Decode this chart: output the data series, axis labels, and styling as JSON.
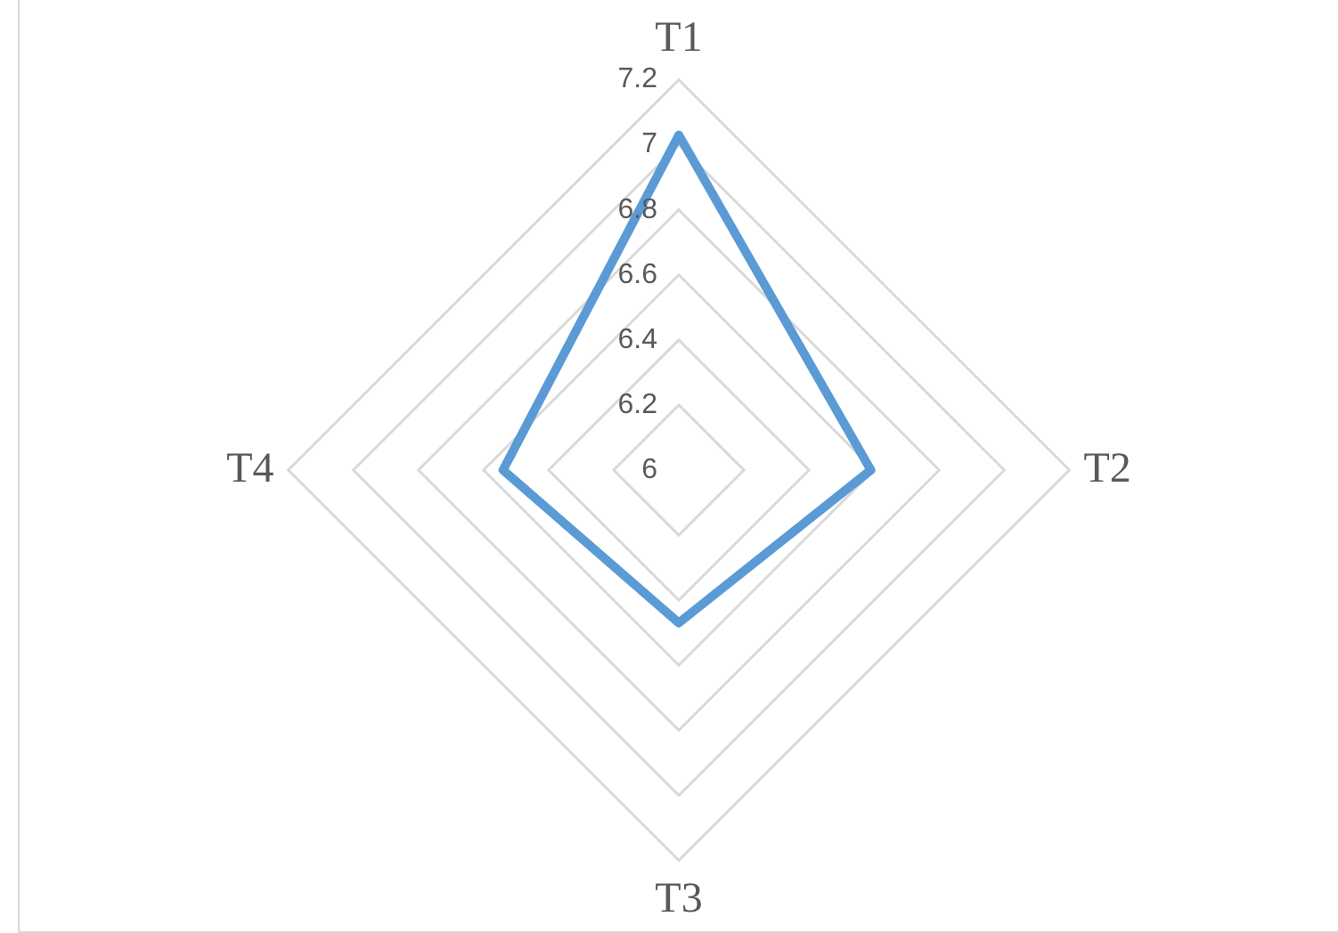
{
  "chart_data": {
    "type": "radar",
    "categories": [
      "T1",
      "T2",
      "T3",
      "T4"
    ],
    "series": [
      {
        "color": "#5b9bd5",
        "values": [
          7.03,
          6.59,
          6.47,
          6.54
        ]
      }
    ],
    "ylim": [
      6,
      7.2
    ],
    "yticks": [
      6,
      6.2,
      6.4,
      6.6,
      6.8,
      7,
      7.2
    ],
    "grid": true,
    "legend": false,
    "marker": "none",
    "line_style": "solid"
  }
}
